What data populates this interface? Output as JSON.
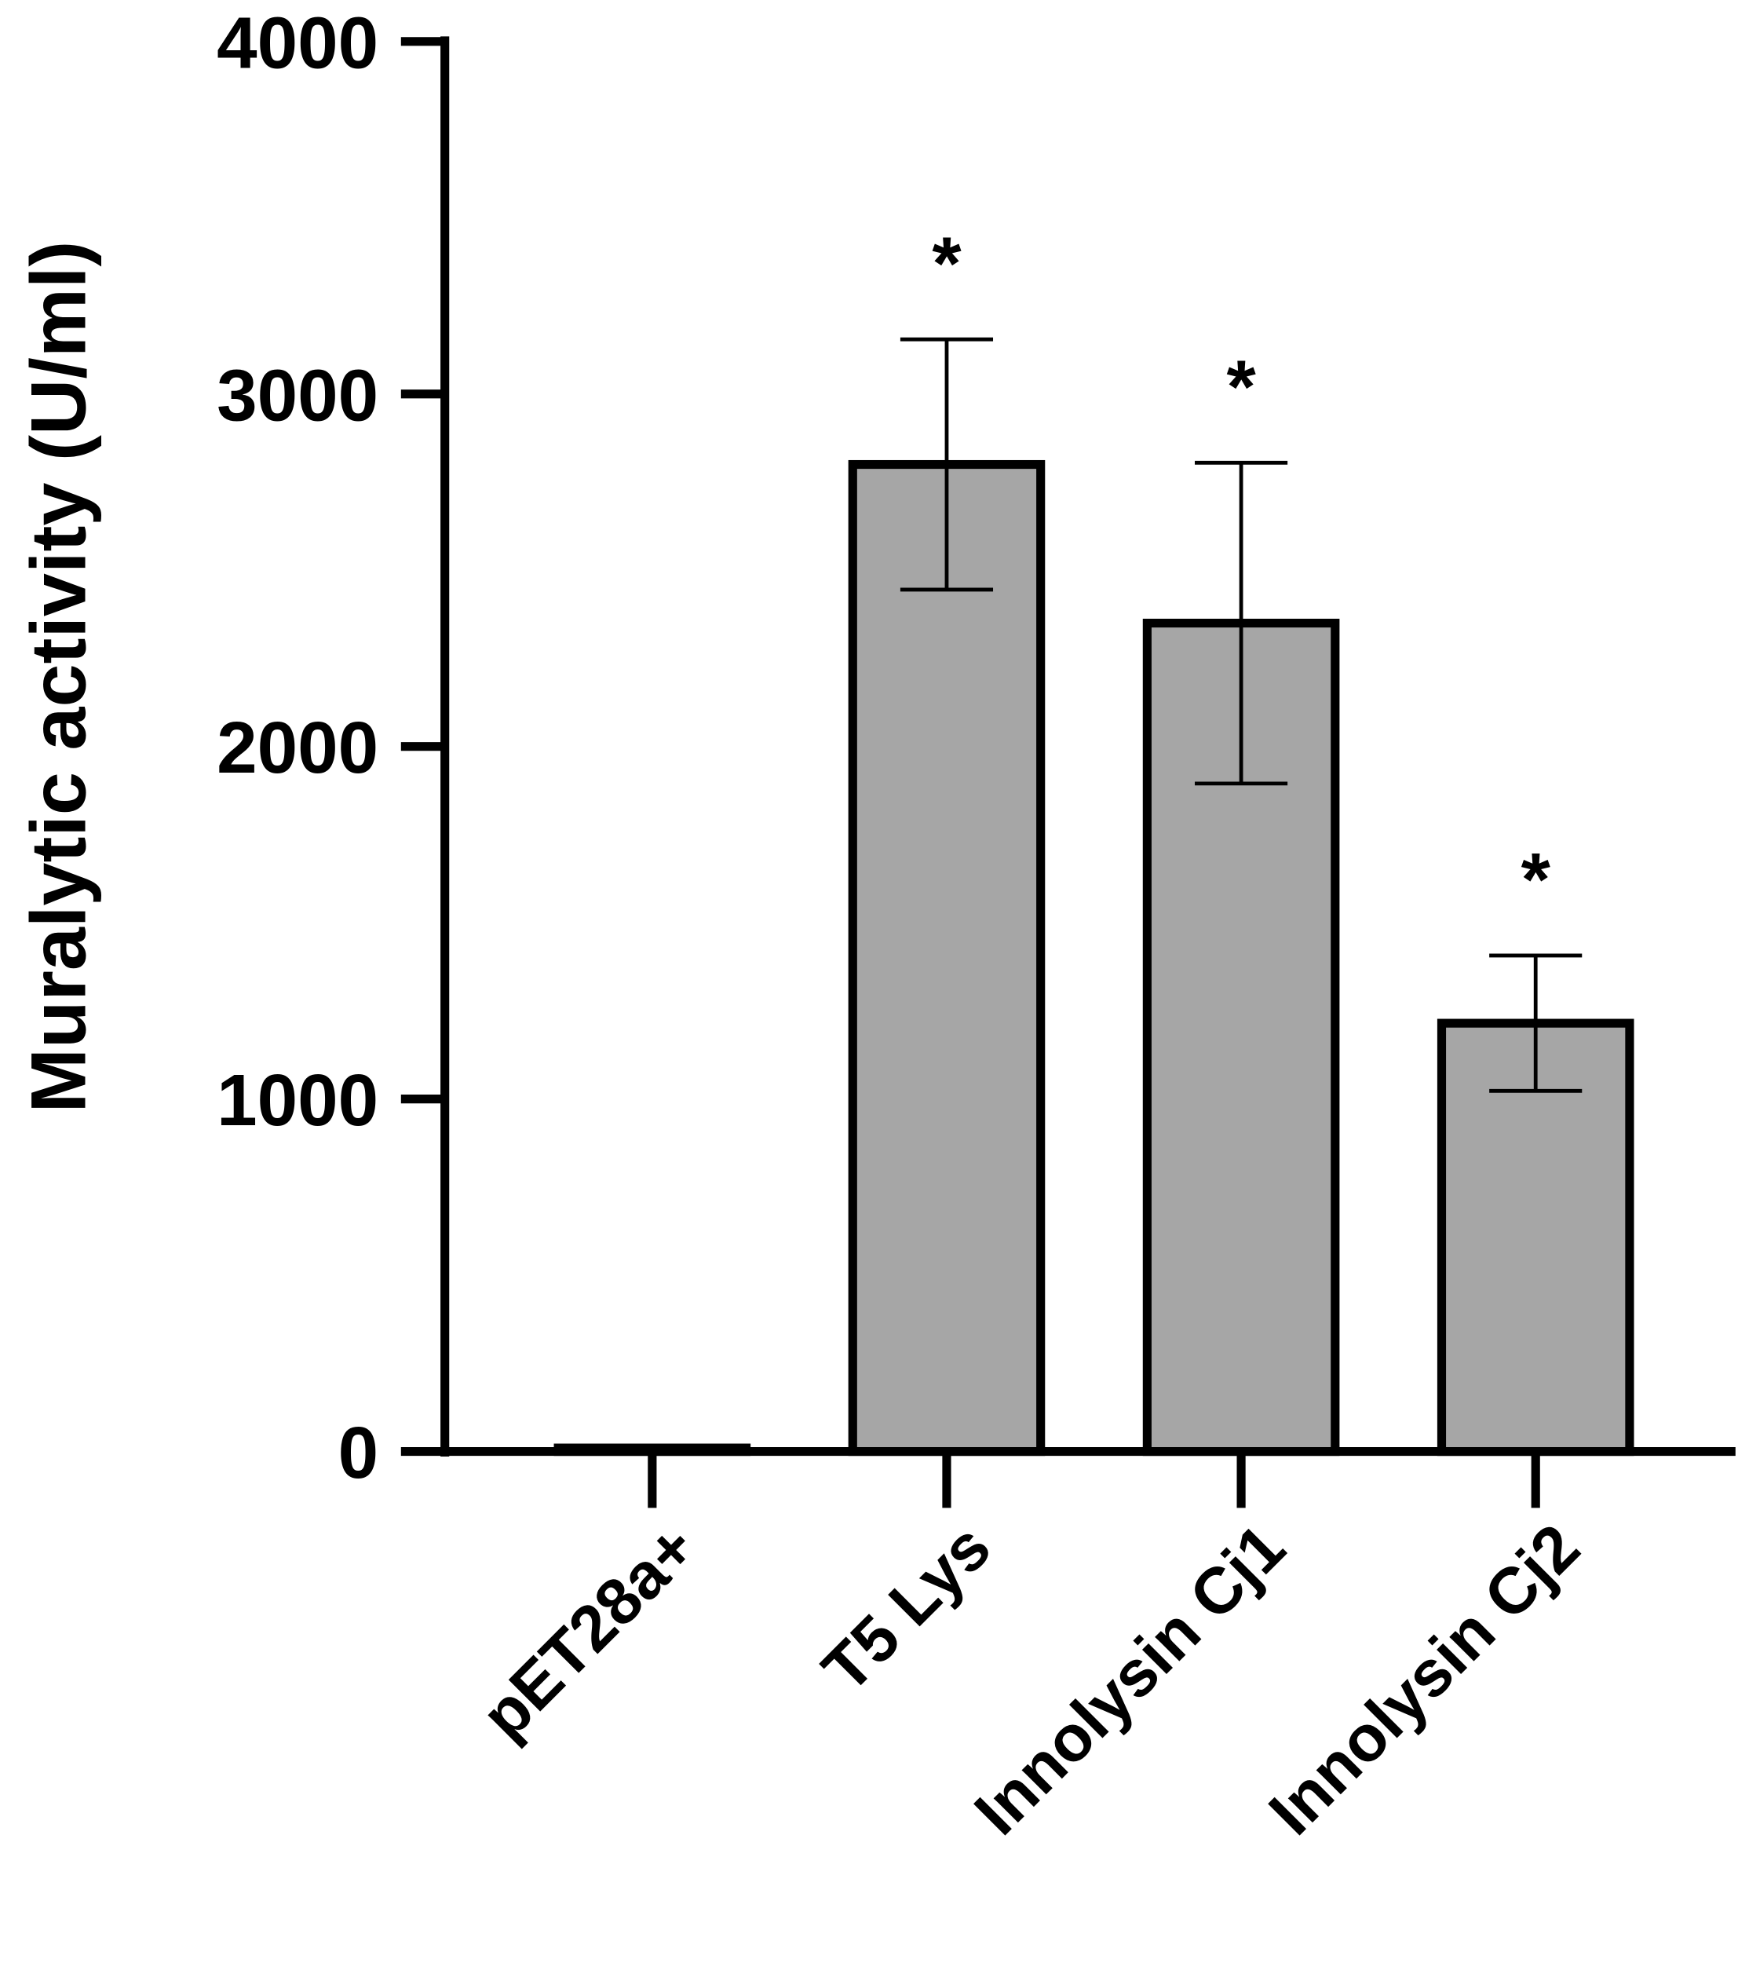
{
  "chart_data": {
    "type": "bar",
    "y_label": "Muralytic activity (U/ml)",
    "categories": [
      "pET28a+",
      "T5 Lys",
      "Innolysin Cj1",
      "Innolysin Cj2"
    ],
    "values": [
      10,
      2800,
      2350,
      1215
    ],
    "errors": [
      null,
      355,
      455,
      192
    ],
    "annotations": [
      null,
      "*",
      "*",
      "*"
    ],
    "color": "#a6a6a6",
    "ylim": [
      0,
      4000
    ],
    "yticks": [
      0,
      1000,
      2000,
      3000,
      4000
    ],
    "grid": false
  }
}
